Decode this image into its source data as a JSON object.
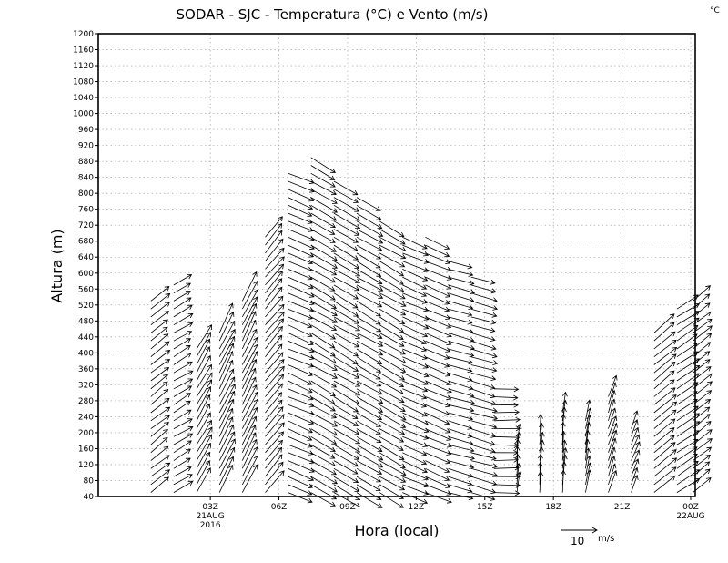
{
  "chart_data": {
    "type": "wind-barb-profile",
    "title": "SODAR - SJC - Temperatura (°C) e Vento (m/s)",
    "unit_corner": "°C",
    "xlabel": "Hora (local)",
    "ylabel": "Altura (m)",
    "ylim": [
      40,
      1200
    ],
    "y_ticks": [
      40,
      80,
      120,
      160,
      200,
      240,
      280,
      320,
      360,
      400,
      440,
      480,
      520,
      560,
      600,
      640,
      680,
      720,
      760,
      800,
      840,
      880,
      920,
      960,
      1000,
      1040,
      1080,
      1120,
      1160,
      1200
    ],
    "xlim_hours": [
      -1.9,
      24.2
    ],
    "x_ticks": [
      {
        "hour": 3,
        "label": "03Z",
        "sub1": "21AUG",
        "sub2": "2016"
      },
      {
        "hour": 6,
        "label": "06Z",
        "sub1": "",
        "sub2": ""
      },
      {
        "hour": 9,
        "label": "09Z",
        "sub1": "",
        "sub2": ""
      },
      {
        "hour": 12,
        "label": "12Z",
        "sub1": "",
        "sub2": ""
      },
      {
        "hour": 15,
        "label": "15Z",
        "sub1": "",
        "sub2": ""
      },
      {
        "hour": 18,
        "label": "18Z",
        "sub1": "",
        "sub2": ""
      },
      {
        "hour": 21,
        "label": "21Z",
        "sub1": "",
        "sub2": ""
      },
      {
        "hour": 24,
        "label": "00Z",
        "sub1": "22AUG",
        "sub2": ""
      }
    ],
    "grid": true,
    "reference_vector": {
      "speed": 10,
      "number": "10",
      "unit": "m/s",
      "label": "10 m/s"
    },
    "profiles": [
      {
        "hour": 0.4,
        "top": 540,
        "u": 5,
        "v": 4
      },
      {
        "hour": 1.4,
        "top": 580,
        "u": 5,
        "v": 3
      },
      {
        "hour": 2.4,
        "top": 420,
        "u": 4,
        "v": 7
      },
      {
        "hour": 3.4,
        "top": 450,
        "u": 4,
        "v": 8
      },
      {
        "hour": 4.4,
        "top": 540,
        "u": 4,
        "v": 8
      },
      {
        "hour": 5.4,
        "top": 690,
        "u": 5,
        "v": 6
      },
      {
        "hour": 6.4,
        "top": 860,
        "u": 7,
        "v": -3
      },
      {
        "hour": 7.4,
        "top": 900,
        "u": 7,
        "v": -4
      },
      {
        "hour": 8.4,
        "top": 840,
        "u": 7,
        "v": -4
      },
      {
        "hour": 9.4,
        "top": 800,
        "u": 7,
        "v": -4
      },
      {
        "hour": 10.4,
        "top": 740,
        "u": 7,
        "v": -4
      },
      {
        "hour": 11.4,
        "top": 700,
        "u": 7,
        "v": -3
      },
      {
        "hour": 12.4,
        "top": 700,
        "u": 7,
        "v": -3
      },
      {
        "hour": 13.4,
        "top": 640,
        "u": 7,
        "v": -2
      },
      {
        "hour": 14.4,
        "top": 600,
        "u": 7,
        "v": -2
      },
      {
        "hour": 15.4,
        "top": 320,
        "u": 7,
        "v": 0
      },
      {
        "hour": 16.4,
        "top": 170,
        "u": 0.5,
        "v": 6
      },
      {
        "hour": 17.4,
        "top": 200,
        "u": 0.5,
        "v": 6
      },
      {
        "hour": 18.4,
        "top": 260,
        "u": 0.5,
        "v": 6
      },
      {
        "hour": 19.4,
        "top": 230,
        "u": 1,
        "v": 6
      },
      {
        "hour": 20.4,
        "top": 300,
        "u": 2,
        "v": 6
      },
      {
        "hour": 21.4,
        "top": 210,
        "u": 2,
        "v": 5
      },
      {
        "hour": 22.4,
        "top": 460,
        "u": 6,
        "v": 5
      },
      {
        "hour": 23.4,
        "top": 520,
        "u": 6,
        "v": 4
      },
      {
        "hour": 24.1,
        "top": 540,
        "u": 5,
        "v": 4
      }
    ]
  }
}
